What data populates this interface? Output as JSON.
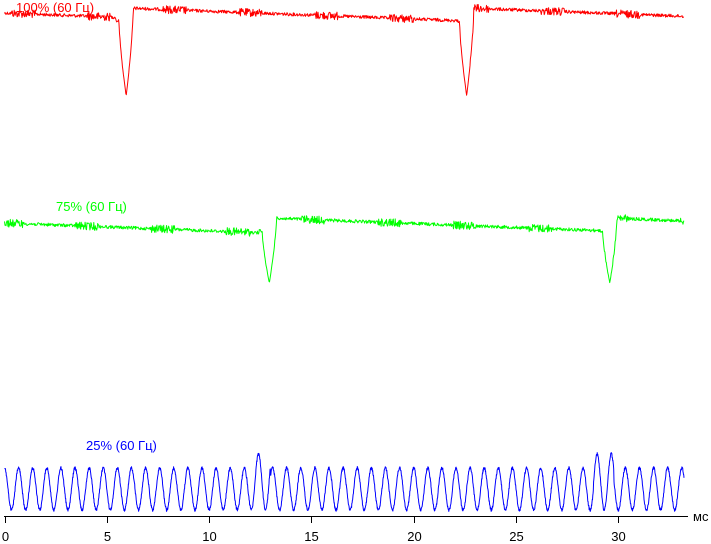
{
  "chart_data": {
    "type": "line",
    "title": "",
    "xlabel": "мс",
    "ylabel": "",
    "x_unit": "мс",
    "xlim": [
      0,
      33.4
    ],
    "x_ticks": [
      0,
      5,
      10,
      15,
      20,
      25,
      30
    ],
    "x_tick_labels": [
      "0",
      "5",
      "10",
      "15",
      "20",
      "25",
      "30"
    ],
    "grid": false,
    "legend": "none (series labels printed above each trace)",
    "y_axis_shown": false,
    "series": [
      {
        "name": "100% (60 Гц)",
        "color": "#ff0000",
        "kind": "flicker-dips",
        "base_level": 1.0,
        "dip_level": 0.15,
        "dip_times_ms": [
          5.95,
          22.6
        ],
        "noise": "medium",
        "step_after_dip": true
      },
      {
        "name": "75% (60 Гц)",
        "color": "#00ff00",
        "kind": "flicker-dips",
        "base_level": 1.0,
        "dip_level": 0.15,
        "dip_times_ms": [
          12.95,
          29.6
        ],
        "noise": "medium",
        "step_after_dip": true
      },
      {
        "name": "25% (60 Гц)",
        "color": "#0000ff",
        "kind": "pwm-oscillation",
        "oscillation_period_ms": 0.69,
        "peak_level": 1.0,
        "trough_level": 0.0,
        "bright_peaks_ms": [
          12.5,
          29.3
        ]
      }
    ]
  }
}
